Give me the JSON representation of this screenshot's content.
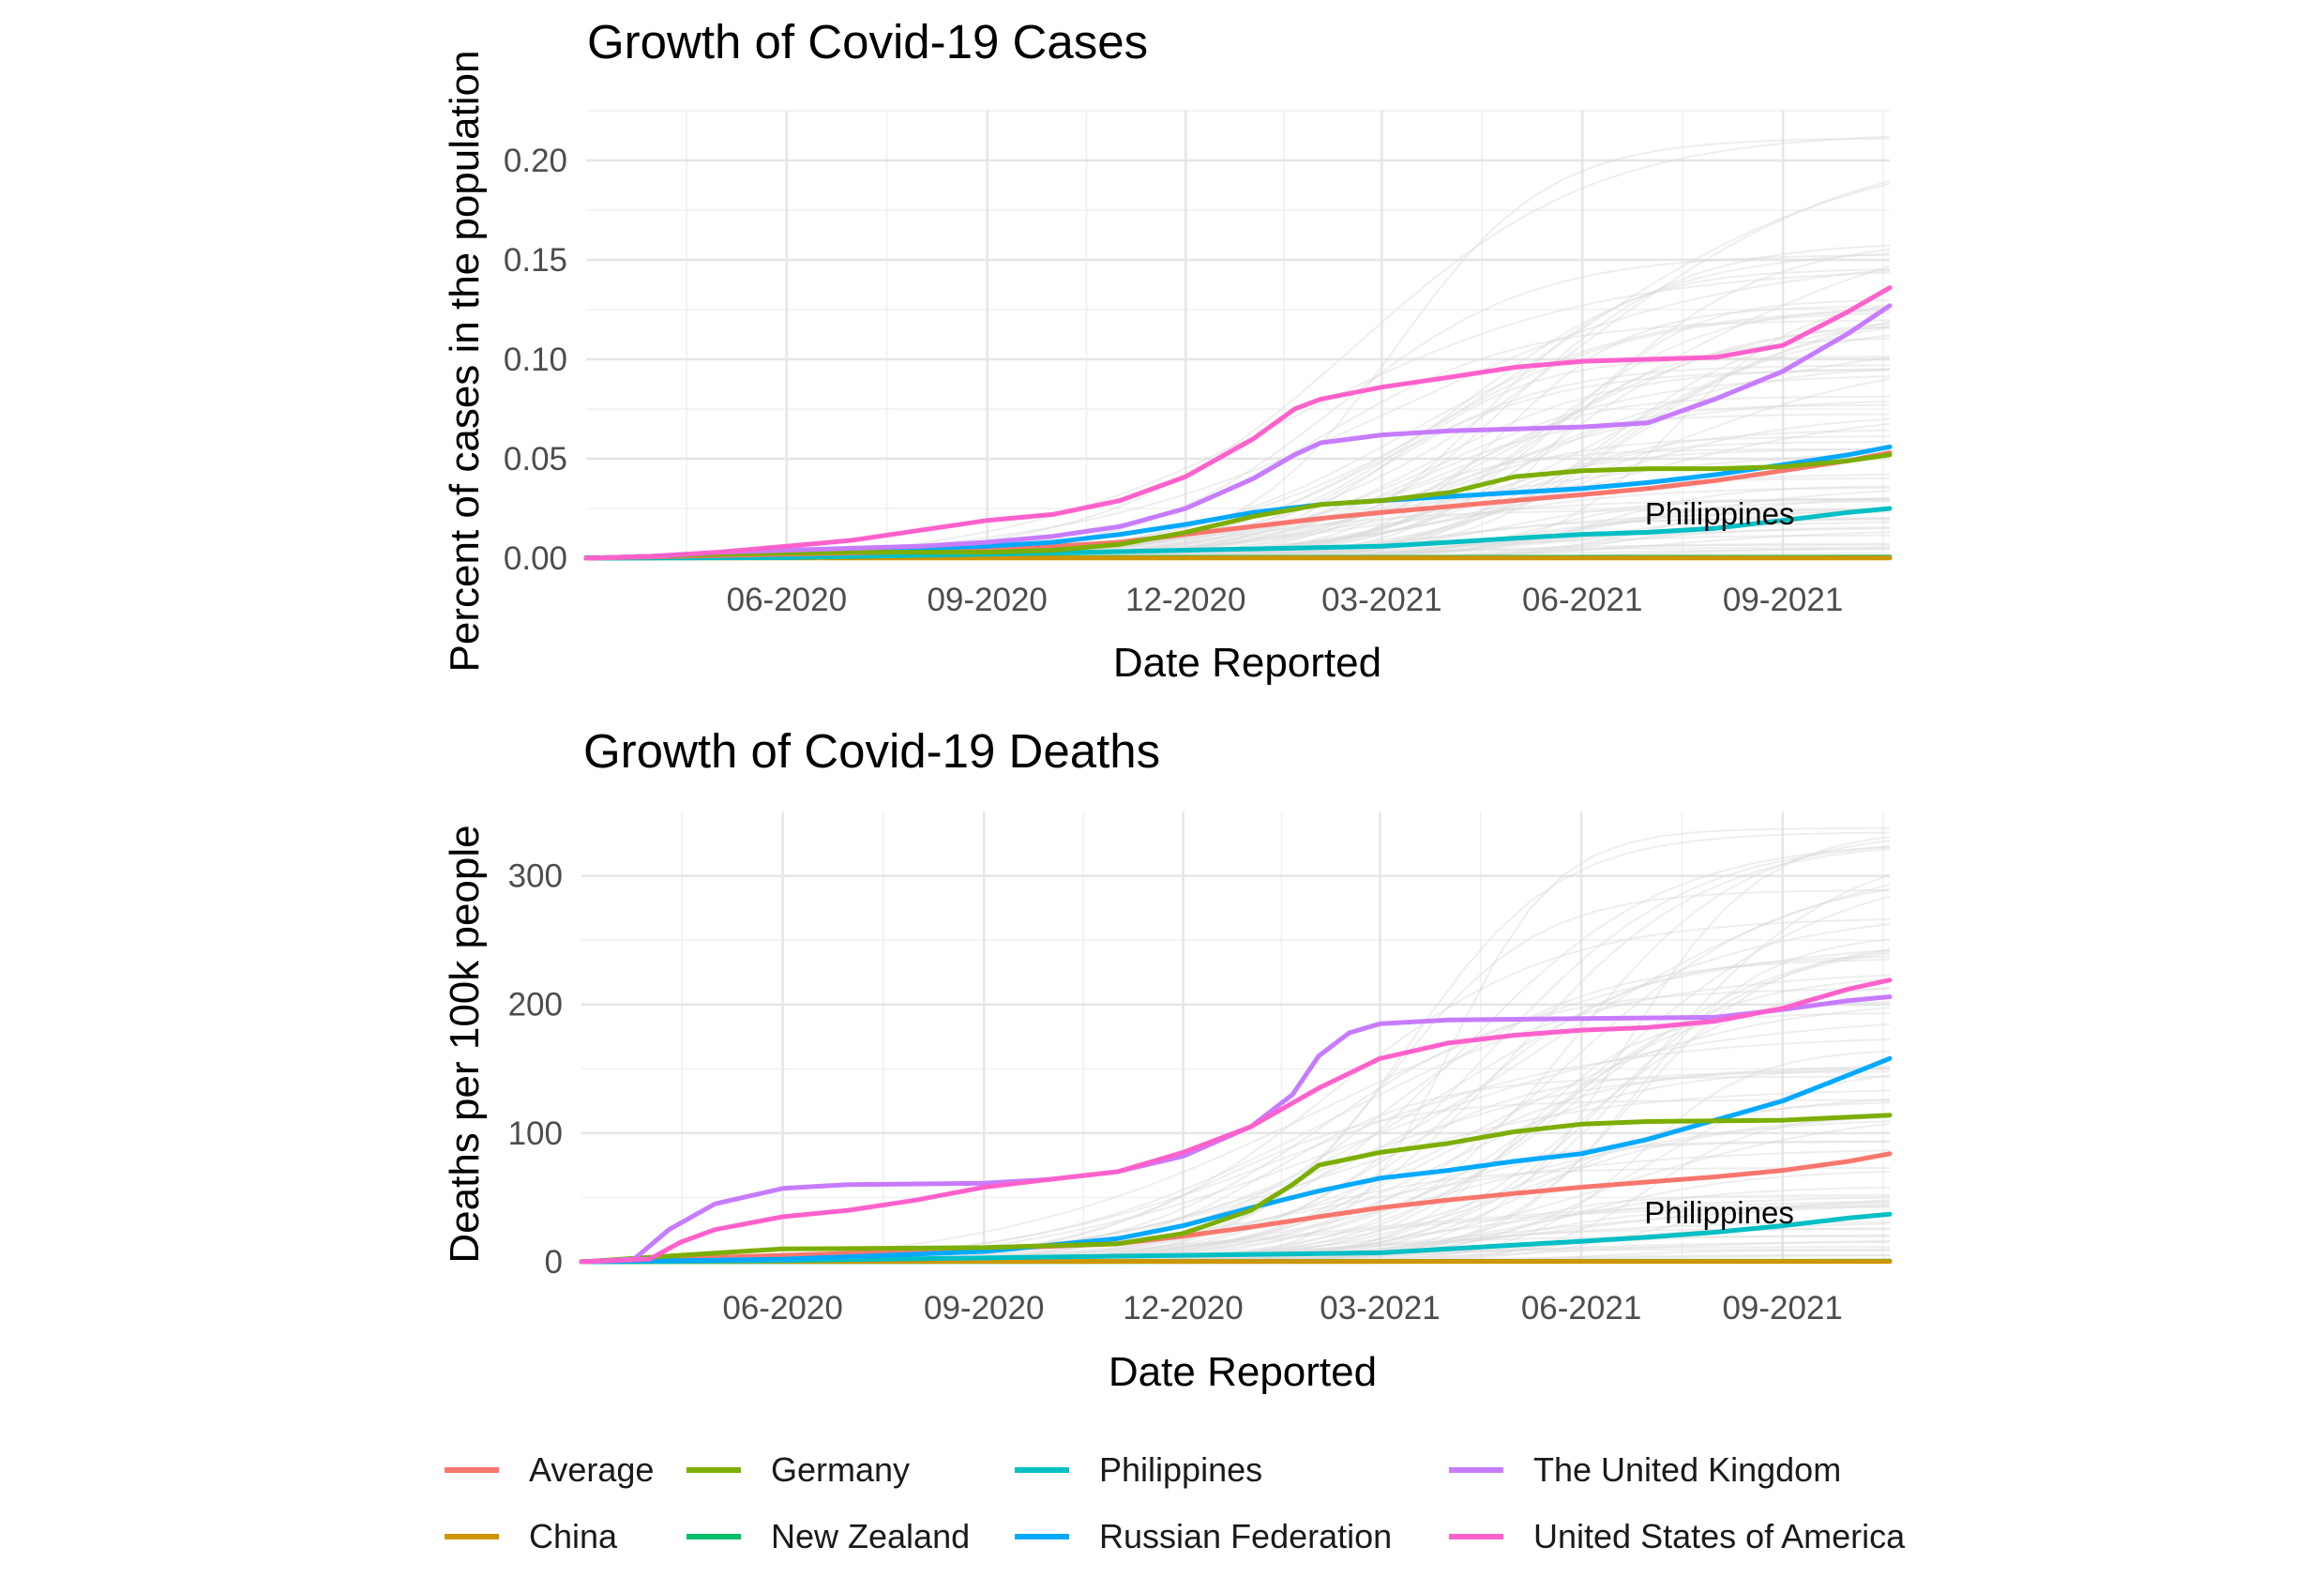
{
  "colors": {
    "Average": "#F8766D",
    "China": "#CD9600",
    "Germany": "#7CAE00",
    "New Zealand": "#00BE67",
    "Philippines": "#00BFC4",
    "Russian Federation": "#00A9FF",
    "The United Kingdom": "#C77CFF",
    "United States of America": "#FF61CC",
    "background": "#D9D9D9"
  },
  "legend": {
    "items": [
      "Average",
      "China",
      "Germany",
      "New Zealand",
      "Philippines",
      "Russian Federation",
      "The United Kingdom",
      "United States of America"
    ]
  },
  "chart_data": [
    {
      "type": "line",
      "title": "Growth of Covid-19 Cases",
      "xlabel": "Date Reported",
      "ylabel": "Percent of cases in the population",
      "x_ticks": [
        "06-2020",
        "09-2020",
        "12-2020",
        "03-2021",
        "06-2021",
        "09-2021"
      ],
      "y_ticks": [
        "0.00",
        "0.05",
        "0.10",
        "0.15",
        "0.20"
      ],
      "xlim": [
        "2020-03-01",
        "2021-10-20"
      ],
      "ylim": [
        0,
        0.225
      ],
      "grid": true,
      "annotation": {
        "text": "Philippines",
        "x": "2021-08-03",
        "y": 0.017
      },
      "series": [
        {
          "name": "United States of America",
          "points": [
            [
              "2020-03-01",
              0
            ],
            [
              "2020-04-01",
              0.001
            ],
            [
              "2020-05-01",
              0.003
            ],
            [
              "2020-06-01",
              0.006
            ],
            [
              "2020-07-01",
              0.009
            ],
            [
              "2020-08-01",
              0.014
            ],
            [
              "2020-09-01",
              0.019
            ],
            [
              "2020-10-01",
              0.022
            ],
            [
              "2020-11-01",
              0.029
            ],
            [
              "2020-12-01",
              0.041
            ],
            [
              "2021-01-01",
              0.06
            ],
            [
              "2021-01-20",
              0.075
            ],
            [
              "2021-02-01",
              0.08
            ],
            [
              "2021-03-01",
              0.086
            ],
            [
              "2021-04-01",
              0.091
            ],
            [
              "2021-05-01",
              0.096
            ],
            [
              "2021-06-01",
              0.099
            ],
            [
              "2021-07-01",
              0.1
            ],
            [
              "2021-08-01",
              0.101
            ],
            [
              "2021-09-01",
              0.107
            ],
            [
              "2021-10-01",
              0.124
            ],
            [
              "2021-10-20",
              0.136
            ]
          ]
        },
        {
          "name": "The United Kingdom",
          "points": [
            [
              "2020-03-01",
              0
            ],
            [
              "2020-04-01",
              0.001
            ],
            [
              "2020-05-01",
              0.003
            ],
            [
              "2020-06-01",
              0.004
            ],
            [
              "2020-07-01",
              0.005
            ],
            [
              "2020-08-01",
              0.006
            ],
            [
              "2020-09-01",
              0.008
            ],
            [
              "2020-10-01",
              0.011
            ],
            [
              "2020-11-01",
              0.016
            ],
            [
              "2020-12-01",
              0.025
            ],
            [
              "2021-01-01",
              0.04
            ],
            [
              "2021-01-20",
              0.052
            ],
            [
              "2021-02-01",
              0.058
            ],
            [
              "2021-03-01",
              0.062
            ],
            [
              "2021-04-01",
              0.064
            ],
            [
              "2021-05-01",
              0.065
            ],
            [
              "2021-06-01",
              0.066
            ],
            [
              "2021-07-01",
              0.068
            ],
            [
              "2021-08-01",
              0.08
            ],
            [
              "2021-09-01",
              0.094
            ],
            [
              "2021-10-01",
              0.113
            ],
            [
              "2021-10-20",
              0.127
            ]
          ]
        },
        {
          "name": "Germany",
          "points": [
            [
              "2020-03-01",
              0
            ],
            [
              "2020-05-01",
              0.002
            ],
            [
              "2020-07-01",
              0.003
            ],
            [
              "2020-09-01",
              0.003
            ],
            [
              "2020-10-01",
              0.004
            ],
            [
              "2020-11-01",
              0.007
            ],
            [
              "2020-12-01",
              0.013
            ],
            [
              "2021-01-01",
              0.021
            ],
            [
              "2021-02-01",
              0.027
            ],
            [
              "2021-03-01",
              0.029
            ],
            [
              "2021-04-01",
              0.033
            ],
            [
              "2021-05-01",
              0.041
            ],
            [
              "2021-06-01",
              0.044
            ],
            [
              "2021-07-01",
              0.045
            ],
            [
              "2021-08-01",
              0.045
            ],
            [
              "2021-09-01",
              0.046
            ],
            [
              "2021-10-01",
              0.049
            ],
            [
              "2021-10-20",
              0.052
            ]
          ]
        },
        {
          "name": "Russian Federation",
          "points": [
            [
              "2020-03-01",
              0
            ],
            [
              "2020-05-01",
              0.002
            ],
            [
              "2020-07-01",
              0.004
            ],
            [
              "2020-09-01",
              0.006
            ],
            [
              "2020-10-01",
              0.008
            ],
            [
              "2020-11-01",
              0.012
            ],
            [
              "2020-12-01",
              0.017
            ],
            [
              "2021-01-01",
              0.023
            ],
            [
              "2021-02-01",
              0.027
            ],
            [
              "2021-03-01",
              0.029
            ],
            [
              "2021-04-01",
              0.031
            ],
            [
              "2021-05-01",
              0.033
            ],
            [
              "2021-06-01",
              0.035
            ],
            [
              "2021-07-01",
              0.038
            ],
            [
              "2021-08-01",
              0.042
            ],
            [
              "2021-09-01",
              0.047
            ],
            [
              "2021-10-01",
              0.052
            ],
            [
              "2021-10-20",
              0.056
            ]
          ]
        },
        {
          "name": "Average",
          "points": [
            [
              "2020-03-01",
              0
            ],
            [
              "2020-06-01",
              0.002
            ],
            [
              "2020-09-01",
              0.004
            ],
            [
              "2020-11-01",
              0.008
            ],
            [
              "2020-12-01",
              0.012
            ],
            [
              "2021-01-01",
              0.016
            ],
            [
              "2021-02-01",
              0.02
            ],
            [
              "2021-03-01",
              0.023
            ],
            [
              "2021-04-01",
              0.026
            ],
            [
              "2021-05-01",
              0.029
            ],
            [
              "2021-06-01",
              0.032
            ],
            [
              "2021-07-01",
              0.035
            ],
            [
              "2021-08-01",
              0.039
            ],
            [
              "2021-09-01",
              0.044
            ],
            [
              "2021-10-01",
              0.049
            ],
            [
              "2021-10-20",
              0.053
            ]
          ]
        },
        {
          "name": "Philippines",
          "points": [
            [
              "2020-03-01",
              0
            ],
            [
              "2020-06-01",
              0.0003
            ],
            [
              "2020-09-01",
              0.002
            ],
            [
              "2020-12-01",
              0.004
            ],
            [
              "2021-03-01",
              0.006
            ],
            [
              "2021-04-01",
              0.008
            ],
            [
              "2021-05-01",
              0.01
            ],
            [
              "2021-06-01",
              0.012
            ],
            [
              "2021-07-01",
              0.013
            ],
            [
              "2021-08-01",
              0.015
            ],
            [
              "2021-09-01",
              0.019
            ],
            [
              "2021-10-01",
              0.023
            ],
            [
              "2021-10-20",
              0.025
            ]
          ]
        },
        {
          "name": "China",
          "points": [
            [
              "2020-03-01",
              0.0001
            ],
            [
              "2021-10-20",
              0.0001
            ]
          ]
        },
        {
          "name": "New Zealand",
          "points": [
            [
              "2020-03-01",
              0.0003
            ],
            [
              "2021-10-20",
              0.0005
            ]
          ]
        }
      ]
    },
    {
      "type": "line",
      "title": "Growth of Covid-19 Deaths",
      "xlabel": "Date Reported",
      "ylabel": "Deaths per 100k people",
      "x_ticks": [
        "06-2020",
        "09-2020",
        "12-2020",
        "03-2021",
        "06-2021",
        "09-2021"
      ],
      "y_ticks": [
        "0",
        "100",
        "200",
        "300"
      ],
      "xlim": [
        "2020-03-01",
        "2021-10-20"
      ],
      "ylim": [
        0,
        350
      ],
      "grid": true,
      "annotation": {
        "text": "Philippines",
        "x": "2021-08-03",
        "y": 30
      },
      "series": [
        {
          "name": "United States of America",
          "points": [
            [
              "2020-03-01",
              0
            ],
            [
              "2020-04-01",
              2
            ],
            [
              "2020-04-15",
              15
            ],
            [
              "2020-05-01",
              25
            ],
            [
              "2020-06-01",
              35
            ],
            [
              "2020-07-01",
              40
            ],
            [
              "2020-08-01",
              48
            ],
            [
              "2020-09-01",
              58
            ],
            [
              "2020-10-01",
              64
            ],
            [
              "2020-11-01",
              70
            ],
            [
              "2020-12-01",
              85
            ],
            [
              "2021-01-01",
              105
            ],
            [
              "2021-02-01",
              135
            ],
            [
              "2021-03-01",
              158
            ],
            [
              "2021-04-01",
              170
            ],
            [
              "2021-05-01",
              176
            ],
            [
              "2021-06-01",
              180
            ],
            [
              "2021-07-01",
              182
            ],
            [
              "2021-08-01",
              187
            ],
            [
              "2021-09-01",
              197
            ],
            [
              "2021-10-01",
              212
            ],
            [
              "2021-10-20",
              219
            ]
          ]
        },
        {
          "name": "The United Kingdom",
          "points": [
            [
              "2020-03-01",
              0
            ],
            [
              "2020-03-25",
              2
            ],
            [
              "2020-04-10",
              25
            ],
            [
              "2020-05-01",
              45
            ],
            [
              "2020-06-01",
              57
            ],
            [
              "2020-07-01",
              60
            ],
            [
              "2020-09-01",
              61
            ],
            [
              "2020-10-01",
              64
            ],
            [
              "2020-11-01",
              70
            ],
            [
              "2020-12-01",
              82
            ],
            [
              "2021-01-01",
              105
            ],
            [
              "2021-01-20",
              130
            ],
            [
              "2021-02-01",
              160
            ],
            [
              "2021-02-15",
              178
            ],
            [
              "2021-03-01",
              185
            ],
            [
              "2021-04-01",
              188
            ],
            [
              "2021-06-01",
              189
            ],
            [
              "2021-08-01",
              190
            ],
            [
              "2021-09-01",
              196
            ],
            [
              "2021-10-01",
              203
            ],
            [
              "2021-10-20",
              206
            ]
          ]
        },
        {
          "name": "Germany",
          "points": [
            [
              "2020-03-01",
              0
            ],
            [
              "2020-04-15",
              5
            ],
            [
              "2020-06-01",
              10
            ],
            [
              "2020-09-01",
              11
            ],
            [
              "2020-11-01",
              14
            ],
            [
              "2020-12-01",
              22
            ],
            [
              "2021-01-01",
              40
            ],
            [
              "2021-01-20",
              60
            ],
            [
              "2021-02-01",
              75
            ],
            [
              "2021-03-01",
              85
            ],
            [
              "2021-04-01",
              92
            ],
            [
              "2021-05-01",
              101
            ],
            [
              "2021-06-01",
              107
            ],
            [
              "2021-07-01",
              109
            ],
            [
              "2021-09-01",
              110
            ],
            [
              "2021-10-20",
              114
            ]
          ]
        },
        {
          "name": "Russian Federation",
          "points": [
            [
              "2020-03-01",
              0
            ],
            [
              "2020-06-01",
              2
            ],
            [
              "2020-09-01",
              8
            ],
            [
              "2020-11-01",
              18
            ],
            [
              "2020-12-01",
              28
            ],
            [
              "2021-01-01",
              42
            ],
            [
              "2021-02-01",
              55
            ],
            [
              "2021-03-01",
              65
            ],
            [
              "2021-04-01",
              71
            ],
            [
              "2021-05-01",
              78
            ],
            [
              "2021-06-01",
              84
            ],
            [
              "2021-07-01",
              95
            ],
            [
              "2021-08-01",
              110
            ],
            [
              "2021-09-01",
              125
            ],
            [
              "2021-10-01",
              145
            ],
            [
              "2021-10-20",
              158
            ]
          ]
        },
        {
          "name": "Average",
          "points": [
            [
              "2020-03-01",
              0
            ],
            [
              "2020-06-01",
              5
            ],
            [
              "2020-09-01",
              10
            ],
            [
              "2020-11-01",
              14
            ],
            [
              "2020-12-01",
              20
            ],
            [
              "2021-01-01",
              27
            ],
            [
              "2021-02-01",
              35
            ],
            [
              "2021-03-01",
              42
            ],
            [
              "2021-04-01",
              48
            ],
            [
              "2021-05-01",
              53
            ],
            [
              "2021-06-01",
              58
            ],
            [
              "2021-07-01",
              62
            ],
            [
              "2021-08-01",
              66
            ],
            [
              "2021-09-01",
              71
            ],
            [
              "2021-10-01",
              78
            ],
            [
              "2021-10-20",
              84
            ]
          ]
        },
        {
          "name": "Philippines",
          "points": [
            [
              "2020-03-01",
              0
            ],
            [
              "2020-06-01",
              1
            ],
            [
              "2020-09-01",
              3
            ],
            [
              "2020-12-01",
              5
            ],
            [
              "2021-03-01",
              7
            ],
            [
              "2021-04-01",
              10
            ],
            [
              "2021-05-01",
              13
            ],
            [
              "2021-06-01",
              16
            ],
            [
              "2021-07-01",
              19
            ],
            [
              "2021-08-01",
              23
            ],
            [
              "2021-09-01",
              28
            ],
            [
              "2021-10-01",
              34
            ],
            [
              "2021-10-20",
              37
            ]
          ]
        },
        {
          "name": "China",
          "points": [
            [
              "2020-03-01",
              0.3
            ],
            [
              "2021-10-20",
              0.3
            ]
          ]
        },
        {
          "name": "New Zealand",
          "points": [
            [
              "2020-03-01",
              0
            ],
            [
              "2021-10-20",
              0.5
            ]
          ]
        }
      ]
    }
  ]
}
